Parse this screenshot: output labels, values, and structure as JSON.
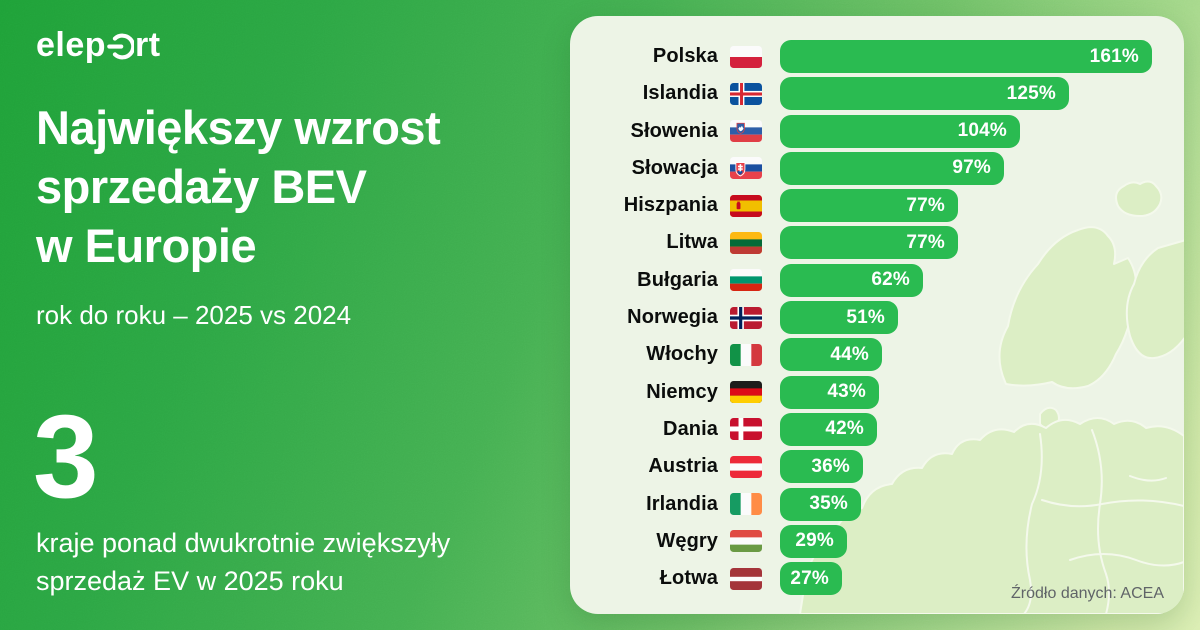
{
  "brand": {
    "name": "eleport",
    "logo_pre": "elep",
    "logo_post": "rt"
  },
  "left_panel": {
    "title": "Największy wzrost\nsprzedaży BEV\nw Europie",
    "subtitle": "rok do roku – 2025 vs 2024",
    "stat_number": "3",
    "stat_caption": "kraje ponad dwukrotnie zwiększyły\nsprzedaż EV w 2025 roku"
  },
  "chart_data": {
    "type": "bar",
    "orientation": "horizontal",
    "title": "Największy wzrost sprzedaży BEV w Europie",
    "subtitle": "rok do roku – 2025 vs 2024",
    "unit": "%",
    "xlim": [
      0,
      170
    ],
    "grid": false,
    "legend": false,
    "bar_color": "#2abb51",
    "value_labels_inside_bars": true,
    "source": "Źródło danych: ACEA",
    "categories": [
      "Polska",
      "Islandia",
      "Słowenia",
      "Słowacja",
      "Hiszpania",
      "Litwa",
      "Bułgaria",
      "Norwegia",
      "Włochy",
      "Niemcy",
      "Dania",
      "Austria",
      "Irlandia",
      "Węgry",
      "Łotwa"
    ],
    "values": [
      161,
      125,
      104,
      97,
      77,
      77,
      62,
      51,
      44,
      43,
      42,
      36,
      35,
      29,
      27
    ],
    "rows": [
      {
        "country": "Polska",
        "flag": "pl",
        "value": 161,
        "label": "161%"
      },
      {
        "country": "Islandia",
        "flag": "is",
        "value": 125,
        "label": "125%"
      },
      {
        "country": "Słowenia",
        "flag": "si",
        "value": 104,
        "label": "104%"
      },
      {
        "country": "Słowacja",
        "flag": "sk",
        "value": 97,
        "label": "97%"
      },
      {
        "country": "Hiszpania",
        "flag": "es",
        "value": 77,
        "label": "77%"
      },
      {
        "country": "Litwa",
        "flag": "lt",
        "value": 77,
        "label": "77%"
      },
      {
        "country": "Bułgaria",
        "flag": "bg",
        "value": 62,
        "label": "62%"
      },
      {
        "country": "Norwegia",
        "flag": "no",
        "value": 51,
        "label": "51%"
      },
      {
        "country": "Włochy",
        "flag": "it",
        "value": 44,
        "label": "44%"
      },
      {
        "country": "Niemcy",
        "flag": "de",
        "value": 43,
        "label": "43%"
      },
      {
        "country": "Dania",
        "flag": "dk",
        "value": 42,
        "label": "42%"
      },
      {
        "country": "Austria",
        "flag": "at",
        "value": 36,
        "label": "36%"
      },
      {
        "country": "Irlandia",
        "flag": "ie",
        "value": 35,
        "label": "35%"
      },
      {
        "country": "Węgry",
        "flag": "hu",
        "value": 29,
        "label": "29%"
      },
      {
        "country": "Łotwa",
        "flag": "lv",
        "value": 27,
        "label": "27%"
      }
    ]
  },
  "colors": {
    "bar_green": "#2abb51",
    "bg_green_dark": "#1fa138",
    "bg_green_light": "#dcefb4",
    "card_bg": "#edf4e6",
    "map_land": "#dceec5",
    "label_text": "#0b0d0c",
    "source_text": "#606468",
    "text_on_green": "#ffffff"
  }
}
